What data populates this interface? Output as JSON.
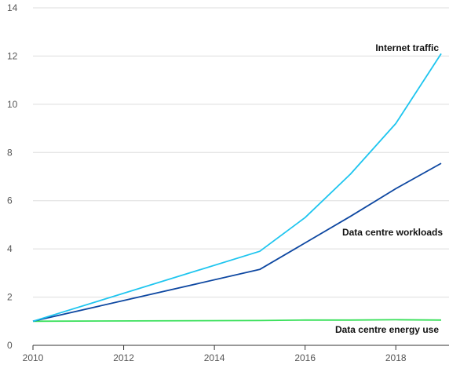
{
  "chart_data": {
    "type": "line",
    "xlim": [
      2010,
      2019
    ],
    "ylim": [
      0,
      14
    ],
    "x_ticks": [
      2010,
      2012,
      2014,
      2016,
      2018
    ],
    "y_ticks": [
      0,
      2,
      4,
      6,
      8,
      10,
      12,
      14
    ],
    "grid": "horizontal",
    "legend": "direct labels",
    "series": [
      {
        "name": "Internet traffic",
        "color": "#1ec5ef",
        "x": [
          2010,
          2015,
          2016,
          2017,
          2018,
          2019
        ],
        "values": [
          1.0,
          3.9,
          5.3,
          7.1,
          9.2,
          12.1
        ]
      },
      {
        "name": "Data centre workloads",
        "color": "#0d47a1",
        "x": [
          2010,
          2015,
          2016,
          2017,
          2018,
          2019
        ],
        "values": [
          1.0,
          3.15,
          4.25,
          5.35,
          6.5,
          7.55
        ]
      },
      {
        "name": "Data centre energy use",
        "color": "#39e05a",
        "x": [
          2010,
          2015,
          2016,
          2017,
          2018,
          2019
        ],
        "values": [
          1.0,
          1.03,
          1.05,
          1.05,
          1.06,
          1.05
        ]
      }
    ]
  }
}
